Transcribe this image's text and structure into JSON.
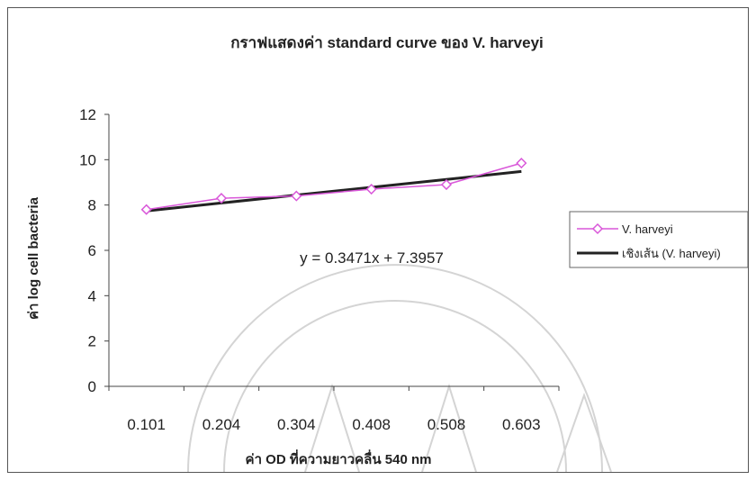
{
  "chart_data": {
    "type": "line",
    "title": "กราฟแสดงค่า standard curve ของ V. harveyi",
    "xlabel": "ค่า OD ที่ความยาวคลื่น 540 nm",
    "ylabel": "ค่า log cell bacteria",
    "categories": [
      "0.101",
      "0.204",
      "0.304",
      "0.408",
      "0.508",
      "0.603"
    ],
    "ylim": [
      0,
      12
    ],
    "yticks": [
      0,
      2,
      4,
      6,
      8,
      10,
      12
    ],
    "grid": false,
    "legend_position": "right",
    "series": [
      {
        "name": "V. harveyi",
        "values": [
          7.8,
          8.3,
          8.4,
          8.7,
          8.9,
          9.85
        ],
        "color": "#d957d9",
        "marker": "diamond"
      },
      {
        "name": "เชิงเส้น (V. harveyi)",
        "values": [
          7.74,
          8.09,
          8.44,
          8.78,
          9.13,
          9.48
        ],
        "color": "#222222",
        "marker": "none"
      }
    ],
    "annotation": "y = 0.3471x + 7.3957"
  }
}
